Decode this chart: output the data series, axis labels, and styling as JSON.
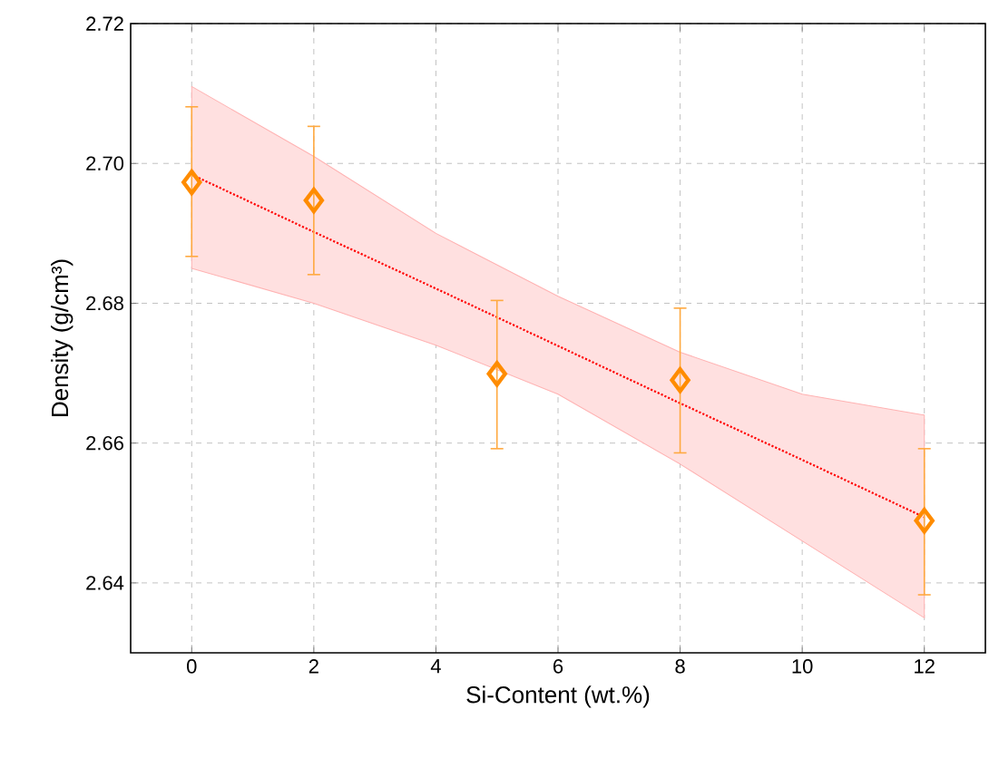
{
  "chart_data": {
    "type": "scatter",
    "xlabel": "Si-Content (wt.%)",
    "ylabel": "Density (g/cm³)",
    "xlim": [
      -1,
      13
    ],
    "xticks": [
      0,
      2,
      4,
      6,
      8,
      10,
      12
    ],
    "ylim": [
      2.63,
      2.72
    ],
    "yticks": [
      {
        "value": 2.64,
        "label": "2.64"
      },
      {
        "value": 2.66,
        "label": "2.66"
      },
      {
        "value": 2.68,
        "label": "2.68"
      },
      {
        "value": 2.7,
        "label": "2.70"
      },
      {
        "value": 2.72,
        "label": "2.72"
      }
    ],
    "grid": true,
    "series": [
      {
        "type": "line",
        "color": "#ff0000",
        "line_style": "dotted",
        "marker": "none",
        "x": [
          0,
          2,
          4,
          6,
          8,
          10,
          12
        ],
        "values": [
          2.6984,
          2.6902,
          2.6821,
          2.6739,
          2.6657,
          2.6576,
          2.6494
        ],
        "lower": [
          2.685,
          2.68,
          2.674,
          2.667,
          2.657,
          2.646,
          2.635
        ],
        "upper": [
          2.711,
          2.701,
          2.69,
          2.681,
          2.673,
          2.667,
          2.664
        ]
      },
      {
        "color": "#ff8c00",
        "marker": "diamond",
        "x": [
          0,
          2,
          5,
          8,
          12
        ],
        "values": [
          2.6973,
          2.6947,
          2.6699,
          2.669,
          2.6489
        ],
        "errors": [
          [
            2.6867,
            2.7081
          ],
          [
            2.6841,
            2.7053
          ],
          [
            2.6592,
            2.6804
          ],
          [
            2.6586,
            2.6793
          ],
          [
            2.6383,
            2.6592
          ]
        ]
      }
    ]
  }
}
